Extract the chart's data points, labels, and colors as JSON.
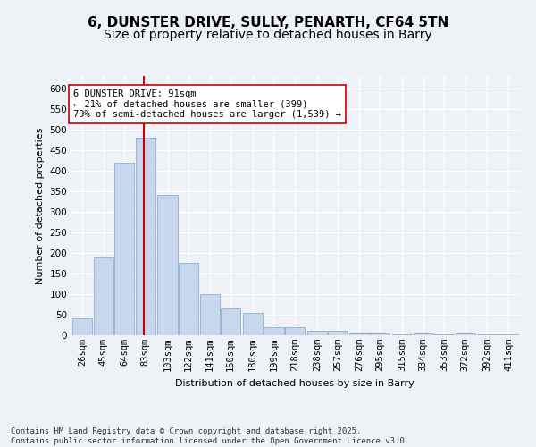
{
  "title_line1": "6, DUNSTER DRIVE, SULLY, PENARTH, CF64 5TN",
  "title_line2": "Size of property relative to detached houses in Barry",
  "xlabel": "Distribution of detached houses by size in Barry",
  "ylabel": "Number of detached properties",
  "bar_color": "#c8d8ec",
  "bar_edge_color": "#8ab0cc",
  "vline_color": "#cc0000",
  "vline_x": 91,
  "categories": [
    "26sqm",
    "45sqm",
    "64sqm",
    "83sqm",
    "103sqm",
    "122sqm",
    "141sqm",
    "160sqm",
    "180sqm",
    "199sqm",
    "218sqm",
    "238sqm",
    "257sqm",
    "276sqm",
    "295sqm",
    "315sqm",
    "334sqm",
    "353sqm",
    "372sqm",
    "392sqm",
    "411sqm"
  ],
  "bin_edges": [
    26,
    45,
    64,
    83,
    103,
    122,
    141,
    160,
    180,
    199,
    218,
    238,
    257,
    276,
    295,
    315,
    334,
    353,
    372,
    392,
    411
  ],
  "bin_width": 19,
  "values": [
    42,
    190,
    420,
    480,
    340,
    175,
    100,
    65,
    55,
    20,
    20,
    10,
    10,
    5,
    5,
    2,
    5,
    2,
    5,
    2,
    2
  ],
  "ylim": [
    0,
    630
  ],
  "yticks": [
    0,
    50,
    100,
    150,
    200,
    250,
    300,
    350,
    400,
    450,
    500,
    550,
    600
  ],
  "annotation_text": "6 DUNSTER DRIVE: 91sqm\n← 21% of detached houses are smaller (399)\n79% of semi-detached houses are larger (1,539) →",
  "footnote": "Contains HM Land Registry data © Crown copyright and database right 2025.\nContains public sector information licensed under the Open Government Licence v3.0.",
  "background_color": "#eef2f7",
  "title_fontsize": 11,
  "subtitle_fontsize": 10,
  "axis_label_fontsize": 8,
  "tick_fontsize": 7.5,
  "annotation_fontsize": 7.5,
  "footnote_fontsize": 6.5
}
